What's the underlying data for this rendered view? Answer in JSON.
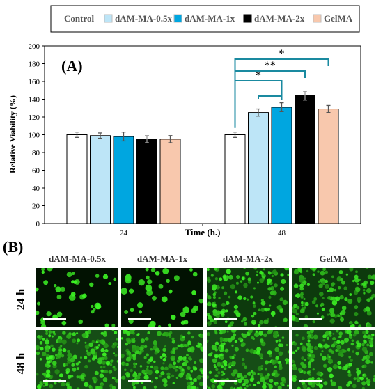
{
  "legend": {
    "entries": [
      "Control",
      "dAM-MA-0.5x",
      "dAM-MA-1x",
      "dAM-MA-2x",
      "GelMA"
    ],
    "colors": [
      "#ffffff",
      "#bde5f7",
      "#00a6e0",
      "#000000",
      "#f8c8ad"
    ]
  },
  "chart_data": {
    "type": "bar",
    "panel_label": "(A)",
    "categories": [
      "24",
      "48"
    ],
    "series": [
      {
        "name": "Control",
        "values": [
          100,
          100
        ],
        "errors": [
          3,
          3
        ],
        "color": "#ffffff"
      },
      {
        "name": "dAM-MA-0.5x",
        "values": [
          99,
          125
        ],
        "errors": [
          3,
          4
        ],
        "color": "#bde5f7"
      },
      {
        "name": "dAM-MA-1x",
        "values": [
          98,
          131
        ],
        "errors": [
          5,
          5
        ],
        "color": "#00a6e0"
      },
      {
        "name": "dAM-MA-2x",
        "values": [
          95,
          144
        ],
        "errors": [
          4,
          5
        ],
        "color": "#000000"
      },
      {
        "name": "GelMA",
        "values": [
          95,
          129
        ],
        "errors": [
          4,
          4
        ],
        "color": "#f8c8ad"
      }
    ],
    "xlabel": "Time (h.)",
    "ylabel": "Relative Viability (%)",
    "ylim": [
      0,
      200
    ],
    "yticks": [
      0,
      20,
      40,
      60,
      80,
      100,
      120,
      140,
      160,
      180,
      200
    ],
    "grid": false,
    "legend_position": "top",
    "significance": [
      {
        "category": "48",
        "from": "Control",
        "to": "dAM-MA-1x",
        "label": "*"
      },
      {
        "category": "48",
        "from": "dAM-MA-0.5x",
        "to": "dAM-MA-1x",
        "label": ""
      },
      {
        "category": "48",
        "from": "Control",
        "to": "dAM-MA-2x",
        "label": "**"
      },
      {
        "category": "48",
        "from": "Control",
        "to": "GelMA",
        "label": "*"
      }
    ]
  },
  "panel_b": {
    "label": "(B)",
    "columns": [
      "dAM-MA-0.5x",
      "dAM-MA-1x",
      "dAM-MA-2x",
      "GelMA"
    ],
    "rows": [
      "24 h",
      "48 h"
    ],
    "images": [
      [
        {
          "kind": "sparse"
        },
        {
          "kind": "sparse"
        },
        {
          "kind": "dense"
        },
        {
          "kind": "dense"
        }
      ],
      [
        {
          "kind": "confluent"
        },
        {
          "kind": "confluent"
        },
        {
          "kind": "confluent"
        },
        {
          "kind": "confluent"
        }
      ]
    ]
  }
}
